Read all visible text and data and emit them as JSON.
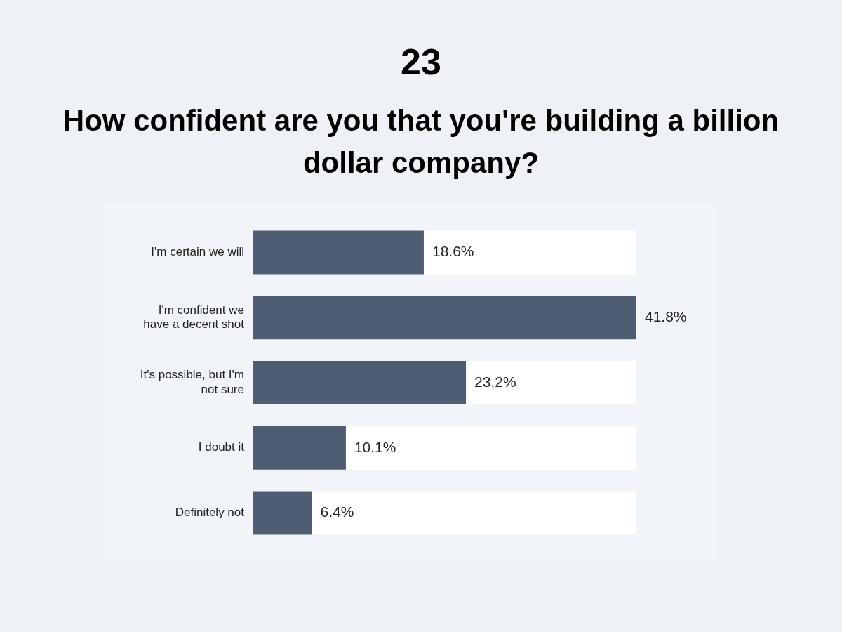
{
  "chart_data": {
    "type": "bar",
    "orientation": "horizontal",
    "title": "23",
    "subtitle": "How confident are you that you're building a billion dollar company?",
    "categories": [
      "I'm certain we will",
      "I'm confident we have a decent shot",
      "It's possible, but I'm not sure",
      "I doubt it",
      "Definitely not"
    ],
    "values": [
      18.6,
      41.8,
      23.2,
      10.1,
      6.4
    ],
    "value_labels": [
      "18.6%",
      "41.8%",
      "23.2%",
      "10.1%",
      "6.4%"
    ],
    "color": "#4f5d73",
    "tick_labels": "y",
    "grid": false,
    "legend": false
  }
}
